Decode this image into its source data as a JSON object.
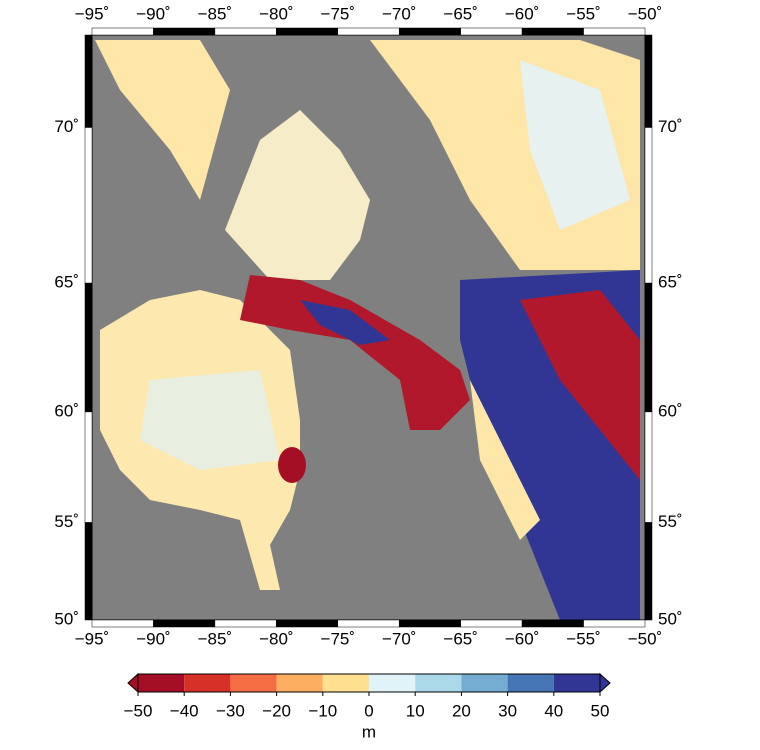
{
  "map": {
    "projection": "mercator",
    "background_color": "#808080",
    "xlim": [
      -95,
      -50
    ],
    "ylim": [
      50,
      72.5
    ],
    "xticks": [
      {
        "value": -95,
        "label": "−95˚"
      },
      {
        "value": -90,
        "label": "−90˚"
      },
      {
        "value": -85,
        "label": "−85˚"
      },
      {
        "value": -80,
        "label": "−80˚"
      },
      {
        "value": -75,
        "label": "−75˚"
      },
      {
        "value": -70,
        "label": "−70˚"
      },
      {
        "value": -65,
        "label": "−65˚"
      },
      {
        "value": -60,
        "label": "−60˚"
      },
      {
        "value": -55,
        "label": "−55˚"
      },
      {
        "value": -50,
        "label": "−50˚"
      }
    ],
    "yticks": [
      {
        "value": 50,
        "label": "50˚"
      },
      {
        "value": 55,
        "label": "55˚"
      },
      {
        "value": 60,
        "label": "60˚"
      },
      {
        "value": 65,
        "label": "65˚"
      },
      {
        "value": 70,
        "label": "70˚"
      }
    ]
  },
  "colorbar": {
    "ticks": [
      {
        "value": -50,
        "label": "−50"
      },
      {
        "value": -40,
        "label": "−40"
      },
      {
        "value": -30,
        "label": "−30"
      },
      {
        "value": -20,
        "label": "−20"
      },
      {
        "value": -10,
        "label": "−10"
      },
      0,
      10,
      20,
      30,
      40,
      50
    ],
    "colors": [
      "#a50f26",
      "#d73027",
      "#f46d43",
      "#fdae61",
      "#fee090",
      "#e0f3f8",
      "#abd9e9",
      "#74add1",
      "#4575b4",
      "#313695"
    ],
    "label": "m"
  }
}
